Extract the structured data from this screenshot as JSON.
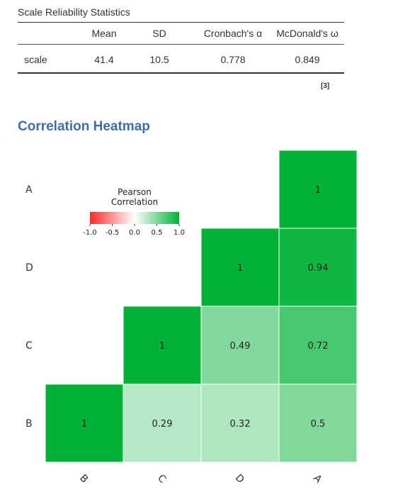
{
  "table": {
    "title": "Scale Reliability Statistics",
    "columns": [
      "",
      "Mean",
      "SD",
      "Cronbach's α",
      "McDonald's ω"
    ],
    "rows": [
      {
        "name": "scale",
        "mean": "41.4",
        "sd": "10.5",
        "alpha": "0.778",
        "omega": "0.849"
      }
    ],
    "footnote": "[3]"
  },
  "section": {
    "title": "Correlation Heatmap"
  },
  "colors": {
    "accent": "#3e6da9",
    "negative": "#ff2a2a",
    "neutral": "#ffffff",
    "positive": "#00b236"
  },
  "chart_data": {
    "type": "heatmap",
    "x_categories": [
      "B",
      "C",
      "D",
      "A"
    ],
    "y_categories": [
      "A",
      "D",
      "C",
      "B"
    ],
    "cells": [
      {
        "x": "B",
        "y": "B",
        "value": 1,
        "label": "1"
      },
      {
        "x": "C",
        "y": "B",
        "value": 0.29,
        "label": "0.29"
      },
      {
        "x": "D",
        "y": "B",
        "value": 0.32,
        "label": "0.32"
      },
      {
        "x": "A",
        "y": "B",
        "value": 0.5,
        "label": "0.5"
      },
      {
        "x": "C",
        "y": "C",
        "value": 1,
        "label": "1"
      },
      {
        "x": "D",
        "y": "C",
        "value": 0.49,
        "label": "0.49"
      },
      {
        "x": "A",
        "y": "C",
        "value": 0.72,
        "label": "0.72"
      },
      {
        "x": "D",
        "y": "D",
        "value": 1,
        "label": "1"
      },
      {
        "x": "A",
        "y": "D",
        "value": 0.94,
        "label": "0.94"
      },
      {
        "x": "A",
        "y": "A",
        "value": 1,
        "label": "1"
      }
    ],
    "legend": {
      "title_lines": [
        "Pearson",
        "Correlation"
      ],
      "ticks": [
        "-1.0",
        "-0.5",
        "0.0",
        "0.5",
        "1.0"
      ],
      "range": [
        -1,
        1
      ],
      "placement": "top-left"
    },
    "x_tick_rotation": "diagonal"
  }
}
